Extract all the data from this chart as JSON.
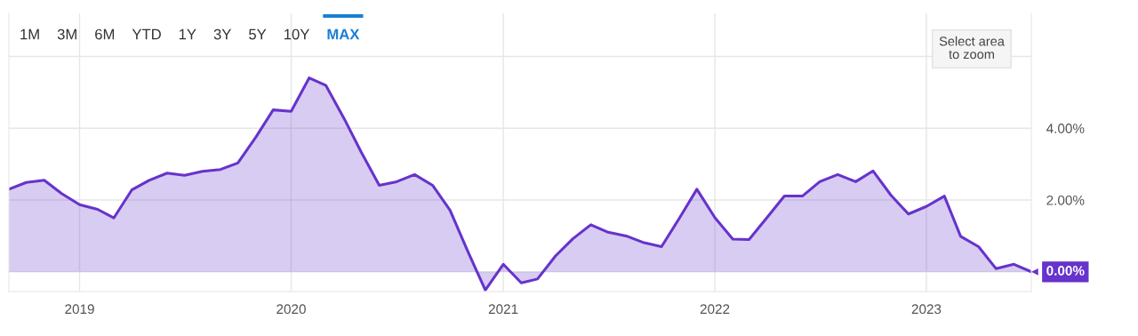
{
  "chart_data": {
    "type": "area",
    "x": [
      "2018-09",
      "2018-10",
      "2018-11",
      "2018-12",
      "2019-01",
      "2019-02",
      "2019-03",
      "2019-04",
      "2019-05",
      "2019-06",
      "2019-07",
      "2019-08",
      "2019-09",
      "2019-10",
      "2019-11",
      "2019-12",
      "2020-01",
      "2020-02",
      "2020-03",
      "2020-04",
      "2020-05",
      "2020-06",
      "2020-07",
      "2020-08",
      "2020-09",
      "2020-10",
      "2020-11",
      "2020-12",
      "2021-01",
      "2021-02",
      "2021-03",
      "2021-04",
      "2021-05",
      "2021-06",
      "2021-07",
      "2021-08",
      "2021-09",
      "2021-10",
      "2021-11",
      "2021-12",
      "2022-01",
      "2022-02",
      "2022-03",
      "2022-04",
      "2022-05",
      "2022-06",
      "2022-07",
      "2022-08",
      "2022-09",
      "2022-10",
      "2022-11",
      "2022-12",
      "2023-01",
      "2023-02",
      "2023-03",
      "2023-04",
      "2023-05",
      "2023-06",
      "2023-07"
    ],
    "series": [
      {
        "color": "#6633cc",
        "values": [
          2.3,
          2.49,
          2.55,
          2.18,
          1.87,
          1.74,
          1.5,
          2.28,
          2.55,
          2.75,
          2.69,
          2.8,
          2.85,
          3.03,
          3.75,
          4.51,
          4.47,
          5.4,
          5.19,
          4.28,
          3.33,
          2.41,
          2.51,
          2.71,
          2.41,
          1.72,
          0.56,
          -0.51,
          0.21,
          -0.31,
          -0.2,
          0.44,
          0.92,
          1.31,
          1.1,
          1.0,
          0.81,
          0.7,
          1.5,
          2.3,
          1.51,
          0.91,
          0.9,
          1.51,
          2.11,
          2.11,
          2.51,
          2.71,
          2.51,
          2.81,
          2.13,
          1.61,
          1.82,
          2.11,
          0.99,
          0.7,
          0.09,
          0.21,
          0.0
        ]
      }
    ],
    "xlim": [
      "2018-09",
      "2023-07"
    ],
    "xticks": [
      {
        "value": "2019-01",
        "label": "2019"
      },
      {
        "value": "2020-01",
        "label": "2020"
      },
      {
        "value": "2021-01",
        "label": "2021"
      },
      {
        "value": "2022-01",
        "label": "2022"
      },
      {
        "value": "2023-01",
        "label": "2023"
      }
    ],
    "ylim": [
      -0.55,
      7.2
    ],
    "yticks": [
      {
        "value": 0,
        "label": "0.00%"
      },
      {
        "value": 2,
        "label": "2.00%"
      },
      {
        "value": 4,
        "label": "4.00%"
      },
      {
        "value": 6,
        "label": null
      }
    ],
    "grid": true,
    "annotations": [
      "1M",
      "3M",
      "6M",
      "YTD",
      "1Y",
      "3Y",
      "5Y",
      "10Y",
      "MAX",
      "Select area\nto zoom",
      "0.00%"
    ]
  }
}
